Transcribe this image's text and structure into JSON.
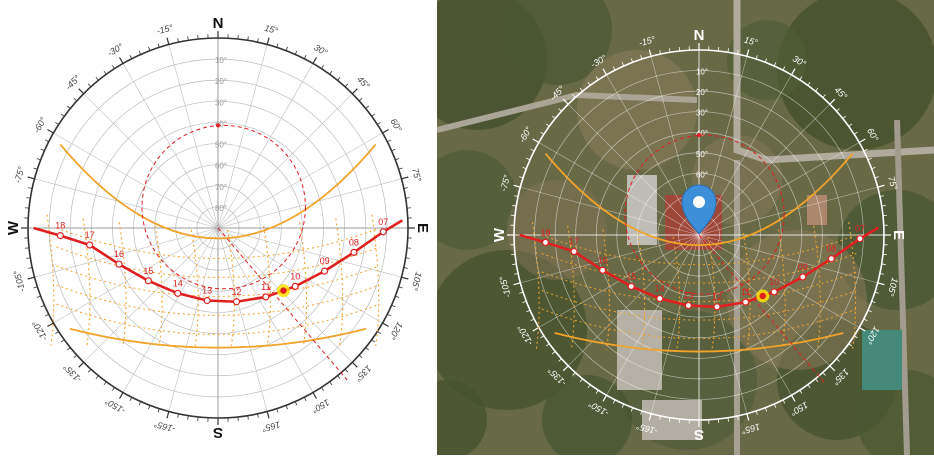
{
  "compass": {
    "north": "N",
    "south": "S",
    "east": "E",
    "west": "W"
  },
  "azimuth_labels": [
    "15°",
    "30°",
    "45°",
    "60°",
    "75°",
    "105°",
    "120°",
    "135°",
    "150°",
    "165°",
    "-15°",
    "-30°",
    "-45°",
    "-60°",
    "-75°",
    "-105°",
    "-120°",
    "-135°",
    "-150°",
    "-165°"
  ],
  "altitude_labels": [
    "10°",
    "20°",
    "30°",
    "40°",
    "50°",
    "60°",
    "70°",
    "80°"
  ],
  "sun_path": {
    "hours": [
      "07",
      "08",
      "09",
      "10",
      "11",
      "12",
      "13",
      "14",
      "15",
      "16",
      "17",
      "18"
    ],
    "current_hour": "10"
  },
  "colors": {
    "sun_path": "#e02020",
    "analemma": "#f2a32b",
    "season_bound": "#f2a32b",
    "grid": "#bdbdbd",
    "sun_marker": "#ffe000",
    "map_pin": "#3d8fd9"
  },
  "icons": {
    "map_pin": "map-pin-icon",
    "sun": "sun-marker-icon"
  }
}
